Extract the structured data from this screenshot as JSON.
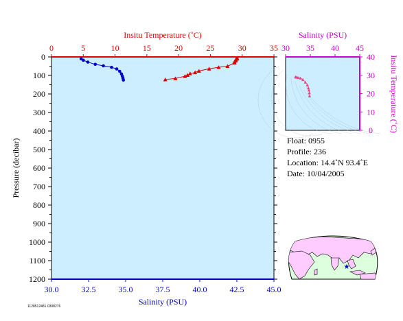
{
  "chart_data": [
    {
      "type": "scatter",
      "title": "",
      "top_axis": {
        "label": "Insitu Temperature (˚C)",
        "range": [
          0,
          35
        ],
        "ticks": [
          "0",
          "5",
          "10",
          "15",
          "20",
          "25",
          "30",
          "35"
        ],
        "color": "#dd0000"
      },
      "bottom_axis": {
        "label": "Salinity (PSU)",
        "range": [
          30.0,
          45.0
        ],
        "ticks": [
          "30.0",
          "32.5",
          "35.0",
          "37.5",
          "40.0",
          "42.5",
          "45.0"
        ],
        "color": "#0000cc"
      },
      "left_axis": {
        "label": "Pressure (decibar)",
        "range": [
          0,
          1200
        ],
        "inverted": true,
        "ticks": [
          "0",
          "100",
          "200",
          "300",
          "400",
          "500",
          "600",
          "700",
          "800",
          "900",
          "1000",
          "1100",
          "1200"
        ]
      },
      "series": [
        {
          "x_axis": "salinity",
          "marker": "circle",
          "color": "#0000cc",
          "points": [
            [
              32.0,
              10
            ],
            [
              32.15,
              18
            ],
            [
              32.45,
              28
            ],
            [
              32.95,
              40
            ],
            [
              33.5,
              48
            ],
            [
              34.05,
              56
            ],
            [
              34.4,
              65
            ],
            [
              34.6,
              78
            ],
            [
              34.72,
              92
            ],
            [
              34.78,
              104
            ],
            [
              34.82,
              115
            ],
            [
              34.85,
              125
            ]
          ]
        },
        {
          "x_axis": "temperature",
          "marker": "triangle",
          "color": "#dd0000",
          "points": [
            [
              29.2,
              5
            ],
            [
              29.2,
              10
            ],
            [
              29.0,
              15
            ],
            [
              29.0,
              20
            ],
            [
              28.8,
              26
            ],
            [
              28.8,
              32
            ],
            [
              27.7,
              50
            ],
            [
              26.3,
              56
            ],
            [
              24.8,
              64
            ],
            [
              23.2,
              76
            ],
            [
              22.6,
              84
            ],
            [
              21.8,
              90
            ],
            [
              21.4,
              98
            ],
            [
              21.0,
              104
            ],
            [
              19.5,
              116
            ],
            [
              17.9,
              122
            ]
          ]
        }
      ],
      "plot_background": "#cceeff",
      "grid": false
    },
    {
      "type": "scatter",
      "title": "",
      "xlabel": "Salinity (PSU)",
      "ylabel": "Insitu Temperature (˚C)",
      "xlim": [
        30,
        45
      ],
      "ylim": [
        0,
        40
      ],
      "xticks": [
        "30",
        "35",
        "40",
        "45"
      ],
      "yticks": [
        "0",
        "10",
        "20",
        "30",
        "40"
      ],
      "color": "#cc00cc",
      "marker_color": "#ee4488",
      "points": [
        [
          32.0,
          29.2
        ],
        [
          32.2,
          29.0
        ],
        [
          32.5,
          28.8
        ],
        [
          33.0,
          28.5
        ],
        [
          33.5,
          27.7
        ],
        [
          34.0,
          26.3
        ],
        [
          34.4,
          24.8
        ],
        [
          34.6,
          23.2
        ],
        [
          34.72,
          22.0
        ],
        [
          34.8,
          20.5
        ],
        [
          34.85,
          18.8
        ]
      ],
      "density_contours": true,
      "plot_background": "#cceeff"
    }
  ],
  "float_info": {
    "float": "Float:  0955",
    "profile": "Profile:  236",
    "location": "Location:  14.4˚N  93.4˚E",
    "date": "Date:  10/04/2005"
  },
  "corner_code": "1128512481.0308276",
  "map": {
    "ocean_color": "#ddffdd",
    "land_color": "#ffccff",
    "marker_color": "#0000cc",
    "marker_lat": 14.4,
    "marker_lon": 93.4
  }
}
